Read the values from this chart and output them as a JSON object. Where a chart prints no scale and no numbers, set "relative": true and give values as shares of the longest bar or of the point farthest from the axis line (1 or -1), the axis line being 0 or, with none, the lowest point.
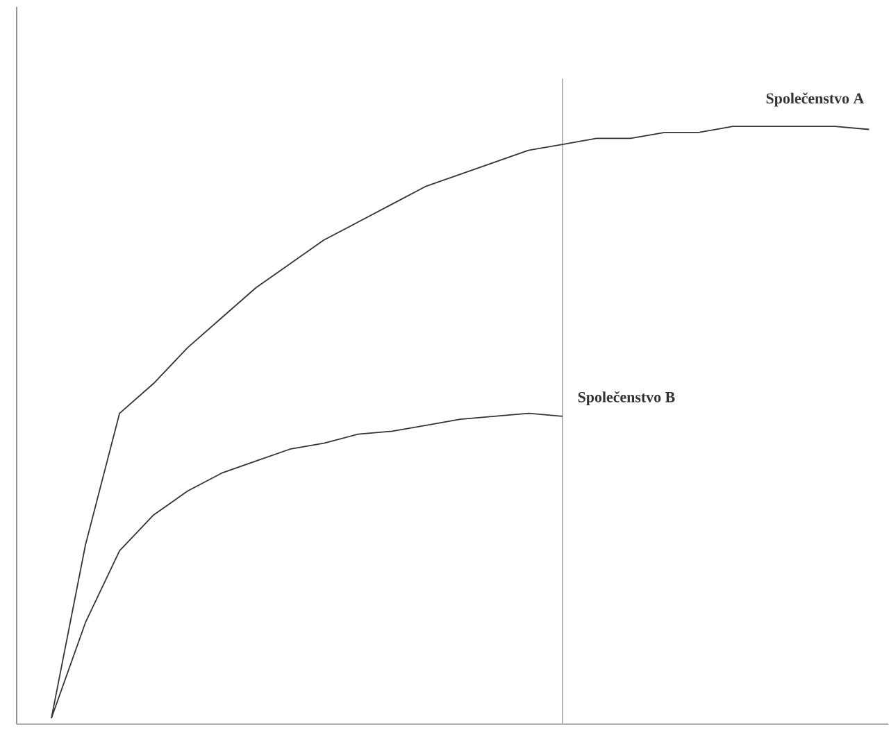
{
  "chart_data": {
    "type": "line",
    "relative": true,
    "categories": [
      null,
      null,
      null,
      null,
      null,
      null,
      null,
      null,
      null,
      null,
      null,
      null,
      null,
      null,
      null,
      null,
      null,
      null,
      null,
      null,
      null,
      null,
      null,
      null,
      null
    ],
    "series": [
      {
        "name": "Společenstvo A",
        "color": "#333333",
        "values": [
          0.01,
          0.3,
          0.52,
          0.57,
          0.63,
          0.68,
          0.73,
          0.77,
          0.81,
          0.84,
          0.87,
          0.9,
          0.92,
          0.94,
          0.96,
          0.97,
          0.98,
          0.98,
          0.99,
          0.99,
          1.0,
          1.0,
          1.0,
          1.0,
          0.995
        ]
      },
      {
        "name": "Společenstvo B",
        "color": "#333333",
        "values": [
          0.01,
          0.17,
          0.29,
          0.35,
          0.39,
          0.42,
          0.44,
          0.46,
          0.47,
          0.485,
          0.49,
          0.5,
          0.51,
          0.515,
          0.52,
          0.515,
          null,
          null,
          null,
          null,
          null,
          null,
          null,
          null,
          null
        ]
      }
    ]
  }
}
